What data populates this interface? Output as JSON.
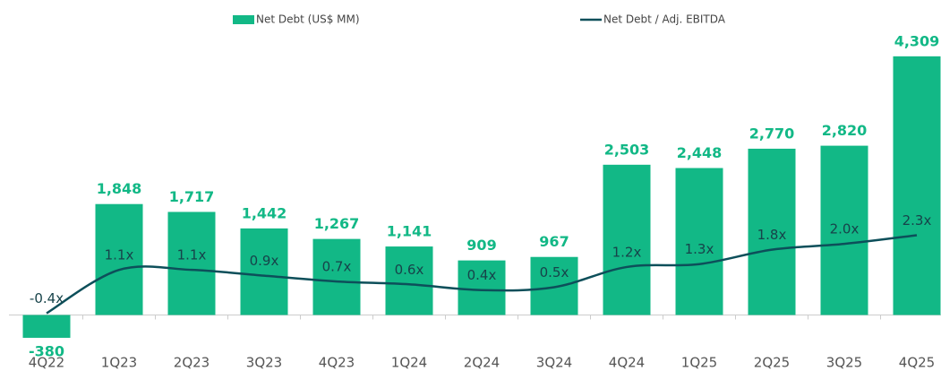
{
  "chart_data": {
    "type": "bar",
    "categories": [
      "4Q22",
      "1Q23",
      "2Q23",
      "3Q23",
      "4Q23",
      "1Q24",
      "2Q24",
      "3Q24",
      "4Q24",
      "1Q25",
      "2Q25",
      "3Q25",
      "4Q25"
    ],
    "series": [
      {
        "name": "Net Debt (US$ MM)",
        "type": "bar",
        "color": "#12b886",
        "values": [
          -380,
          1848,
          1717,
          1442,
          1267,
          1141,
          909,
          967,
          2503,
          2448,
          2770,
          2820,
          4309
        ],
        "value_labels": [
          "-380",
          "1,848",
          "1,717",
          "1,442",
          "1,267",
          "1,141",
          "909",
          "967",
          "2,503",
          "2,448",
          "2,770",
          "2,820",
          "4,309"
        ]
      },
      {
        "name": "Net Debt / Adj. EBITDA",
        "type": "line",
        "axis": "y2",
        "color": "#0d4f5a",
        "values": [
          -0.4,
          1.1,
          1.1,
          0.9,
          0.7,
          0.6,
          0.4,
          0.5,
          1.2,
          1.3,
          1.8,
          2.0,
          2.3
        ],
        "value_labels": [
          "-0.4x",
          "1.1x",
          "1.1x",
          "0.9x",
          "0.7x",
          "0.6x",
          "0.4x",
          "0.5x",
          "1.2x",
          "1.3x",
          "1.8x",
          "2.0x",
          "2.3x"
        ]
      }
    ],
    "ylim": [
      -500,
      4650
    ],
    "y2lim": [
      -1.5,
      9.2
    ]
  }
}
